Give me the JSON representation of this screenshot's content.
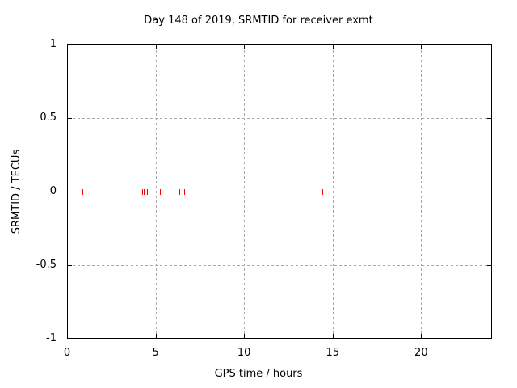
{
  "chart_data": {
    "type": "scatter",
    "title": "Day 148 of 2019, SRMTID for receiver exmt",
    "xlabel": "GPS time / hours",
    "ylabel": "SRMTID / TECUs",
    "xlim": [
      0,
      24
    ],
    "ylim": [
      -1,
      1
    ],
    "grid": true,
    "legend": "none",
    "xticks": [
      {
        "value": 0,
        "label": "0"
      },
      {
        "value": 5,
        "label": "5"
      },
      {
        "value": 10,
        "label": "10"
      },
      {
        "value": 15,
        "label": "15"
      },
      {
        "value": 20,
        "label": "20"
      }
    ],
    "yticks": [
      {
        "value": -1,
        "label": "-1"
      },
      {
        "value": -0.5,
        "label": "-0.5"
      },
      {
        "value": 0,
        "label": "0"
      },
      {
        "value": 0.5,
        "label": "0.5"
      },
      {
        "value": 1,
        "label": "1"
      }
    ],
    "series": [
      {
        "name": "SRMTID",
        "marker": "plus",
        "color": "#ff0000",
        "points": [
          {
            "x": 0.85,
            "y": 0
          },
          {
            "x": 4.25,
            "y": 0
          },
          {
            "x": 4.35,
            "y": 0
          },
          {
            "x": 4.5,
            "y": 0
          },
          {
            "x": 5.25,
            "y": 0
          },
          {
            "x": 6.35,
            "y": 0
          },
          {
            "x": 6.6,
            "y": 0
          },
          {
            "x": 14.4,
            "y": 0
          }
        ]
      }
    ],
    "colors": {
      "background": "#ffffff",
      "border": "#000000",
      "grid": "#a6a6a6",
      "text": "#000000",
      "marker": "#ff0000"
    }
  }
}
